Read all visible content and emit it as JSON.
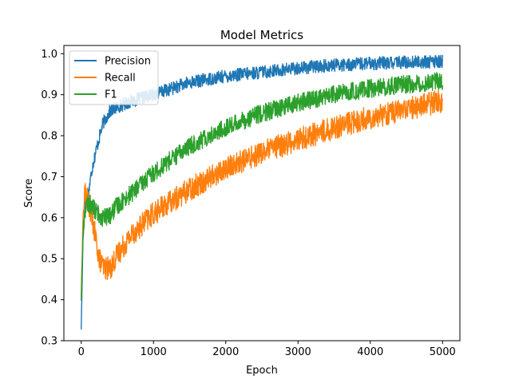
{
  "chart_data": {
    "type": "line",
    "title": "Model Metrics",
    "xlabel": "Epoch",
    "ylabel": "Score",
    "xlim": [
      -240,
      5240
    ],
    "ylim": [
      0.3,
      1.02
    ],
    "xticks": [
      0,
      1000,
      2000,
      3000,
      4000,
      5000
    ],
    "yticks": [
      0.3,
      0.4,
      0.5,
      0.6,
      0.7,
      0.8,
      0.9,
      1.0
    ],
    "xtick_labels": [
      "0",
      "1000",
      "2000",
      "3000",
      "4000",
      "5000"
    ],
    "ytick_labels": [
      "0.3",
      "0.4",
      "0.5",
      "0.6",
      "0.7",
      "0.8",
      "0.9",
      "1.0"
    ],
    "grid": false,
    "legend_position": "upper-left",
    "series": [
      {
        "name": "Precision",
        "color": "#1f77b4",
        "noise": 0.01,
        "x": [
          0,
          25,
          50,
          100,
          150,
          200,
          300,
          400,
          500,
          700,
          1000,
          1500,
          2000,
          2500,
          3000,
          3500,
          4000,
          4500,
          5000
        ],
        "values": [
          0.33,
          0.55,
          0.63,
          0.66,
          0.72,
          0.76,
          0.83,
          0.86,
          0.87,
          0.885,
          0.9,
          0.93,
          0.945,
          0.955,
          0.965,
          0.972,
          0.976,
          0.979,
          0.981
        ]
      },
      {
        "name": "Recall",
        "color": "#ff7f0e",
        "noise": 0.018,
        "x": [
          0,
          25,
          50,
          100,
          150,
          200,
          250,
          300,
          400,
          500,
          700,
          1000,
          1500,
          2000,
          2500,
          3000,
          3500,
          4000,
          4500,
          5000
        ],
        "values": [
          0.41,
          0.6,
          0.66,
          0.64,
          0.6,
          0.55,
          0.5,
          0.48,
          0.475,
          0.51,
          0.56,
          0.61,
          0.67,
          0.72,
          0.76,
          0.79,
          0.82,
          0.845,
          0.865,
          0.885
        ]
      },
      {
        "name": "F1",
        "color": "#2ca02c",
        "noise": 0.014,
        "x": [
          0,
          25,
          50,
          100,
          150,
          200,
          300,
          400,
          500,
          700,
          1000,
          1500,
          2000,
          2500,
          3000,
          3500,
          4000,
          4500,
          5000
        ],
        "values": [
          0.4,
          0.56,
          0.62,
          0.635,
          0.63,
          0.615,
          0.6,
          0.605,
          0.63,
          0.66,
          0.71,
          0.775,
          0.82,
          0.855,
          0.88,
          0.9,
          0.915,
          0.925,
          0.935
        ]
      }
    ]
  }
}
